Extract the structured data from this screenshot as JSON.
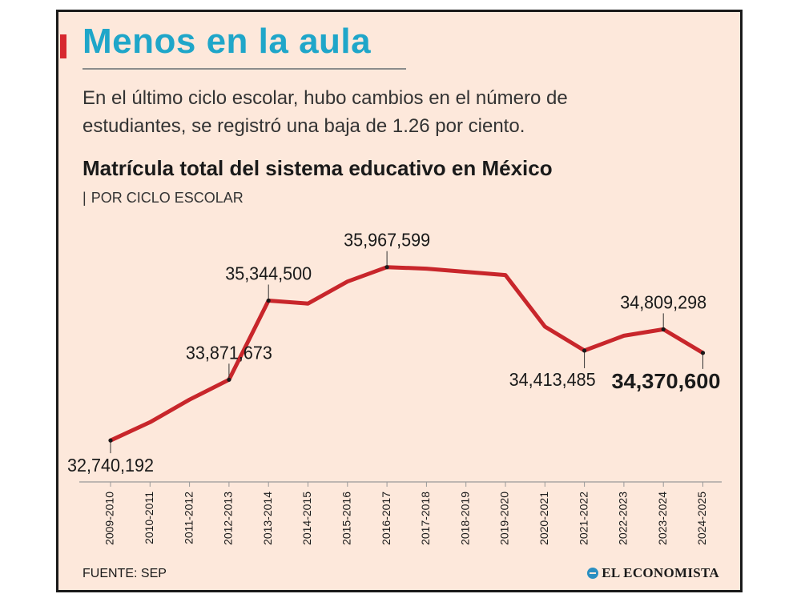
{
  "headline": "Menos en la aula",
  "intro": "En el último ciclo escolar, hubo cambios en el número de estudiantes, se registró una baja de 1.26 por ciento.",
  "source": "FUENTE: SEP",
  "logo_text": "EL ECONOMISTA",
  "colors": {
    "accent": "#d7282f",
    "headline": "#1fa6c9",
    "line": "#c8262b",
    "background": "#fde8db"
  },
  "chart_data": {
    "type": "line",
    "title": "Matrícula total del sistema educativo en México",
    "subtitle": "POR CICLO ESCOLAR",
    "categories": [
      "2009-2010",
      "2010-2011",
      "2011-2012",
      "2012-2013",
      "2013-2014",
      "2014-2015",
      "2015-2016",
      "2016-2017",
      "2017-2018",
      "2018-2019",
      "2019-2020",
      "2020-2021",
      "2021-2022",
      "2022-2023",
      "2023-2024",
      "2024-2025"
    ],
    "values": [
      32740192,
      33080000,
      33500000,
      33871673,
      35344500,
      35290000,
      35700000,
      35967599,
      35940000,
      35880000,
      35820000,
      34860000,
      34413485,
      34690000,
      34809298,
      34370600
    ],
    "ylim": [
      32400000,
      36500000
    ],
    "grid": false,
    "legend": "none",
    "labels": [
      {
        "index": 0,
        "text": "32,740,192",
        "bold": false
      },
      {
        "index": 3,
        "text": "33,871,673",
        "bold": false
      },
      {
        "index": 4,
        "text": "35,344,500",
        "bold": false
      },
      {
        "index": 7,
        "text": "35,967,599",
        "bold": false
      },
      {
        "index": 12,
        "text": "34,413,485",
        "bold": false
      },
      {
        "index": 14,
        "text": "34,809,298",
        "bold": false
      },
      {
        "index": 15,
        "text": "34,370,600",
        "bold": true
      }
    ]
  }
}
